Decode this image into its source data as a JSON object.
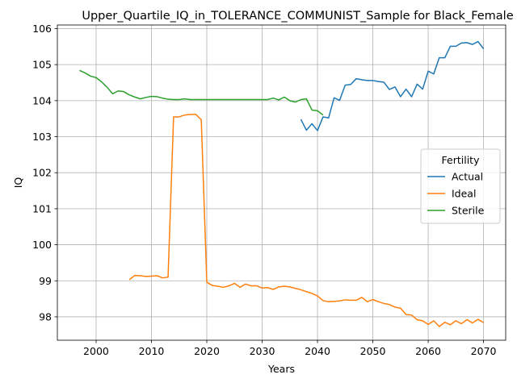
{
  "chart_data": {
    "type": "line",
    "title": "Upper_Quartile_IQ_in_TOLERANCE_COMMUNIST_Sample for Black_Female",
    "xlabel": "Years",
    "ylabel": "IQ",
    "xlim": [
      1993,
      2074
    ],
    "ylim": [
      97.35,
      106.1
    ],
    "xticks": [
      2000,
      2010,
      2020,
      2030,
      2040,
      2050,
      2060,
      2070
    ],
    "yticks": [
      98,
      99,
      100,
      101,
      102,
      103,
      104,
      105,
      106
    ],
    "grid": true,
    "legend": {
      "title": "Fertility",
      "placement": "center-right"
    },
    "series": [
      {
        "name": "Actual",
        "color": "#1f77b4",
        "x": [
          2037,
          2038,
          2039,
          2040,
          2041,
          2042,
          2043,
          2044,
          2045,
          2046,
          2047,
          2048,
          2049,
          2050,
          2051,
          2052,
          2053,
          2054,
          2055,
          2056,
          2057,
          2058,
          2059,
          2060,
          2061,
          2062,
          2063,
          2064,
          2065,
          2066,
          2067,
          2068,
          2069,
          2070
        ],
        "y": [
          103.48,
          103.18,
          103.36,
          103.17,
          103.55,
          103.52,
          104.08,
          104.01,
          104.43,
          104.45,
          104.61,
          104.58,
          104.56,
          104.56,
          104.53,
          104.51,
          104.31,
          104.38,
          104.11,
          104.32,
          104.11,
          104.46,
          104.32,
          104.82,
          104.74,
          105.19,
          105.19,
          105.51,
          105.51,
          105.6,
          105.61,
          105.56,
          105.64,
          105.44
        ]
      },
      {
        "name": "Ideal",
        "color": "#ff7f0e",
        "x": [
          2006,
          2007,
          2008,
          2009,
          2010,
          2011,
          2012,
          2013,
          2014,
          2015,
          2016,
          2017,
          2018,
          2019,
          2020,
          2021,
          2022,
          2023,
          2024,
          2025,
          2026,
          2027,
          2028,
          2029,
          2030,
          2031,
          2032,
          2033,
          2034,
          2035,
          2036,
          2037,
          2038,
          2039,
          2040,
          2041,
          2042,
          2043,
          2044,
          2045,
          2046,
          2047,
          2048,
          2049,
          2050,
          2051,
          2052,
          2053,
          2054,
          2055,
          2056,
          2057,
          2058,
          2059,
          2060,
          2061,
          2062,
          2063,
          2064,
          2065,
          2066,
          2067,
          2068,
          2069,
          2070
        ],
        "y": [
          99.03,
          99.15,
          99.14,
          99.12,
          99.13,
          99.14,
          99.08,
          99.1,
          103.55,
          103.55,
          103.6,
          103.62,
          103.62,
          103.47,
          98.96,
          98.87,
          98.85,
          98.82,
          98.86,
          98.93,
          98.82,
          98.91,
          98.86,
          98.86,
          98.8,
          98.81,
          98.76,
          98.83,
          98.85,
          98.83,
          98.79,
          98.75,
          98.7,
          98.65,
          98.58,
          98.45,
          98.42,
          98.43,
          98.44,
          98.47,
          98.46,
          98.46,
          98.54,
          98.42,
          98.48,
          98.42,
          98.37,
          98.34,
          98.27,
          98.24,
          98.06,
          98.05,
          97.92,
          97.89,
          97.79,
          97.89,
          97.73,
          97.85,
          97.78,
          97.89,
          97.81,
          97.92,
          97.83,
          97.93,
          97.84
        ]
      },
      {
        "name": "Sterile",
        "color": "#2ca02c",
        "x": [
          1997,
          1998,
          1999,
          2000,
          2001,
          2002,
          2003,
          2004,
          2005,
          2006,
          2007,
          2008,
          2009,
          2010,
          2011,
          2012,
          2013,
          2014,
          2015,
          2016,
          2017,
          2018,
          2019,
          2020,
          2021,
          2022,
          2023,
          2024,
          2025,
          2026,
          2027,
          2028,
          2029,
          2030,
          2031,
          2032,
          2033,
          2034,
          2035,
          2036,
          2037,
          2038,
          2039,
          2040,
          2041
        ],
        "y": [
          104.84,
          104.77,
          104.68,
          104.64,
          104.52,
          104.37,
          104.19,
          104.27,
          104.25,
          104.16,
          104.1,
          104.05,
          104.09,
          104.12,
          104.11,
          104.07,
          104.04,
          104.03,
          104.03,
          104.05,
          104.03,
          104.03,
          104.03,
          104.03,
          104.03,
          104.03,
          104.03,
          104.03,
          104.03,
          104.03,
          104.03,
          104.03,
          104.03,
          104.03,
          104.03,
          104.07,
          104.02,
          104.1,
          104.0,
          103.96,
          104.03,
          104.05,
          103.74,
          103.72,
          103.6
        ]
      }
    ]
  }
}
